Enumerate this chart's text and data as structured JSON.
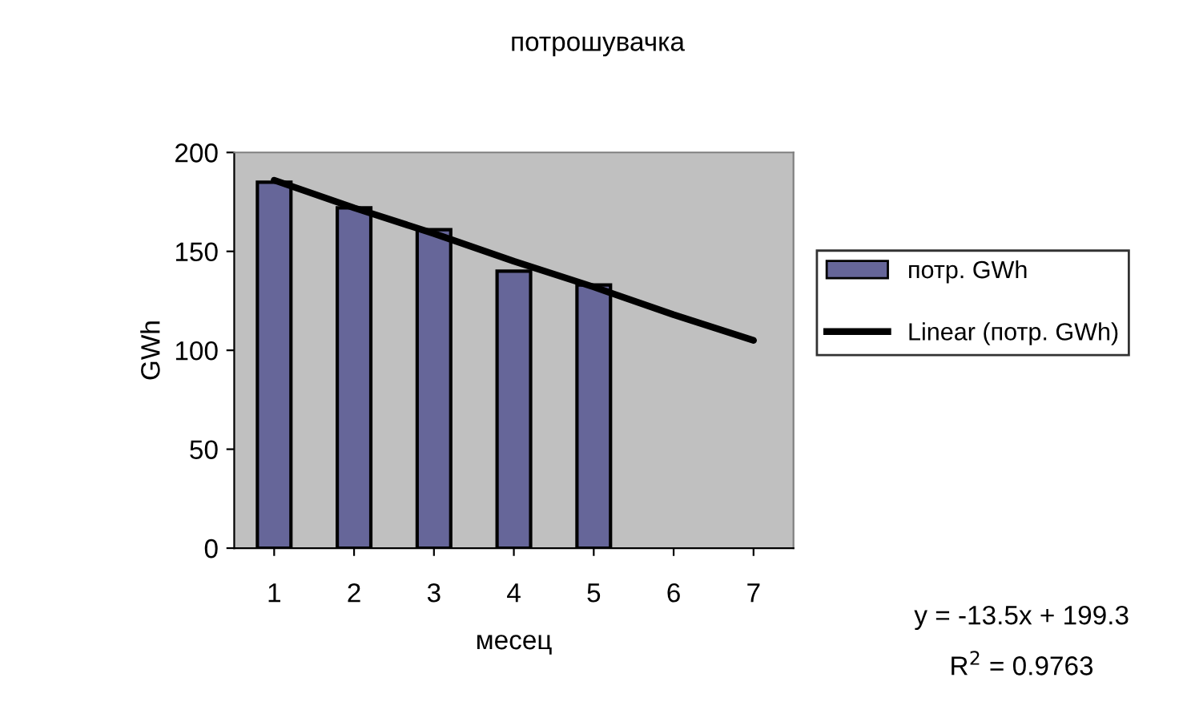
{
  "chart_data": {
    "type": "bar",
    "title": "потрошувачка",
    "xlabel": "месец",
    "ylabel": "GWh",
    "categories": [
      "1",
      "2",
      "3",
      "4",
      "5",
      "6",
      "7"
    ],
    "series": [
      {
        "name": "потр. GWh",
        "color": "#666699",
        "values": [
          185,
          172,
          161,
          140,
          133,
          null,
          null
        ]
      },
      {
        "name": "Linear (потр. GWh)",
        "type": "line",
        "color": "#000000",
        "values": [
          186,
          172,
          159,
          145,
          132,
          118,
          105
        ]
      }
    ],
    "ylim": [
      0,
      200
    ],
    "yticks": [
      0,
      50,
      100,
      150,
      200
    ],
    "grid": false,
    "legend": "right",
    "annotations": [
      "y = -13.5x + 199.3",
      "R$^{2}$ = 0.9763"
    ]
  }
}
